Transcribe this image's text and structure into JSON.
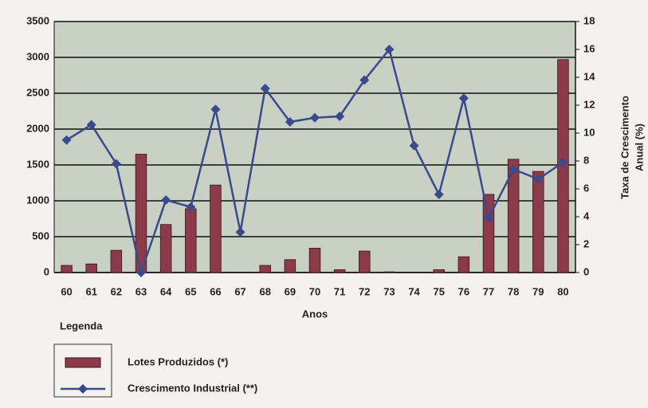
{
  "chart_data": {
    "type": "bar",
    "categories": [
      "60",
      "61",
      "62",
      "63",
      "64",
      "65",
      "66",
      "67",
      "68",
      "69",
      "70",
      "71",
      "72",
      "73",
      "74",
      "75",
      "76",
      "77",
      "78",
      "79",
      "80"
    ],
    "series": [
      {
        "name": "Lotes Produzidos (*)",
        "type": "bar",
        "axis": "y",
        "color": "#8b3a4a",
        "values": [
          100,
          120,
          310,
          1650,
          670,
          890,
          1220,
          0,
          100,
          180,
          340,
          40,
          300,
          10,
          0,
          40,
          220,
          1090,
          1580,
          1410,
          2970
        ]
      },
      {
        "name": "Crescimento Industrial (**)",
        "type": "line",
        "axis": "y2",
        "color": "#3b4a8c",
        "values": [
          9.5,
          10.6,
          7.8,
          0,
          5.2,
          4.7,
          11.7,
          2.9,
          13.2,
          10.8,
          11.1,
          11.2,
          13.8,
          16.0,
          9.1,
          5.6,
          12.5,
          3.9,
          7.4,
          6.7,
          7.9
        ]
      }
    ],
    "x_label": "Anos",
    "y2_label": [
      "Taxa de Crescimento",
      "Anual (%)"
    ],
    "legend_title": "Legenda",
    "ylim": [
      0,
      3500
    ],
    "yticks": [
      0,
      500,
      1000,
      1500,
      2000,
      2500,
      3000,
      3500
    ],
    "y2lim": [
      0,
      18
    ],
    "y2ticks": [
      0,
      2,
      4,
      6,
      8,
      10,
      12,
      14,
      16,
      18
    ],
    "grid": true,
    "plot_background": "#c9d0c4"
  }
}
